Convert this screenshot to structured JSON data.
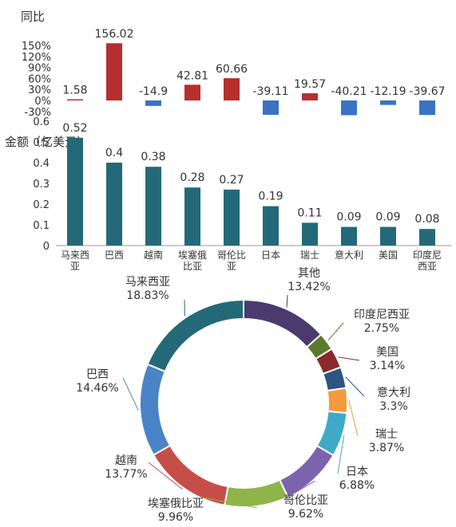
{
  "chart_data": [
    {
      "type": "bar",
      "title": "同比",
      "categories": [
        "马来西亚",
        "巴西",
        "越南",
        "埃塞俄比亚",
        "哥伦比亚",
        "日本",
        "瑞士",
        "意大利",
        "美国",
        "印度尼西亚"
      ],
      "values": [
        1.58,
        156.02,
        -14.9,
        42.81,
        60.66,
        -39.11,
        19.57,
        -40.21,
        -12.19,
        -39.67
      ],
      "value_labels": [
        "1.58",
        "156.02",
        "-14.9",
        "42.81",
        "60.66",
        "-39.11",
        "19.57",
        "-40.21",
        "-12.19",
        "-39.67"
      ],
      "yticks": [
        "150%",
        "120%",
        "90%",
        "60%",
        "30%",
        "0%",
        "-30%"
      ],
      "ytick_values": [
        150,
        120,
        90,
        60,
        30,
        0,
        -30
      ],
      "ylim": [
        -30,
        150
      ],
      "grid": false,
      "colors": {
        "positive": "#b5302f",
        "negative": "#3a73c2"
      }
    },
    {
      "type": "bar",
      "title": "金额（亿美元）",
      "categories": [
        "马来西亚",
        "巴西",
        "越南",
        "埃塞俄比亚",
        "哥伦比亚",
        "日本",
        "瑞士",
        "意大利",
        "美国",
        "印度尼西亚"
      ],
      "x_tick_labels": [
        [
          "马来西",
          "亚"
        ],
        [
          "巴西"
        ],
        [
          "越南"
        ],
        [
          "埃塞俄",
          "比亚"
        ],
        [
          "哥伦比",
          "亚"
        ],
        [
          "日本"
        ],
        [
          "瑞士"
        ],
        [
          "意大利"
        ],
        [
          "美国"
        ],
        [
          "印度尼",
          "西亚"
        ]
      ],
      "values": [
        0.52,
        0.4,
        0.38,
        0.28,
        0.27,
        0.19,
        0.11,
        0.09,
        0.09,
        0.08
      ],
      "value_labels": [
        "0.52",
        "0.4",
        "0.38",
        "0.28",
        "0.27",
        "0.19",
        "0.11",
        "0.09",
        "0.09",
        "0.08"
      ],
      "yticks": [
        "0.6",
        "0.5",
        "0.4",
        "0.3",
        "0.2",
        "0.1",
        "0"
      ],
      "ytick_values": [
        0.6,
        0.5,
        0.4,
        0.3,
        0.2,
        0.1,
        0
      ],
      "ylim": [
        0,
        0.6
      ],
      "grid": false,
      "colors": {
        "bar": "#236978"
      }
    },
    {
      "type": "pie",
      "donut": true,
      "slices": [
        {
          "label": "其他",
          "percent_label": "13.42%",
          "value": 13.42,
          "color": "#4a3a6e"
        },
        {
          "label": "印度尼西亚",
          "percent_label": "2.75%",
          "value": 2.75,
          "color": "#5b7a2a"
        },
        {
          "label": "美国",
          "percent_label": "3.14%",
          "value": 3.14,
          "color": "#8b2a2a"
        },
        {
          "label": "意大利",
          "percent_label": "3.3%",
          "value": 3.3,
          "color": "#2e5484"
        },
        {
          "label": "瑞士",
          "percent_label": "3.87%",
          "value": 3.87,
          "color": "#f39a3c"
        },
        {
          "label": "日本",
          "percent_label": "6.88%",
          "value": 6.88,
          "color": "#3faac7"
        },
        {
          "label": "哥伦比亚",
          "percent_label": "9.62%",
          "value": 9.62,
          "color": "#7b64ad"
        },
        {
          "label": "埃塞俄比亚",
          "percent_label": "9.96%",
          "value": 9.96,
          "color": "#8fb44a"
        },
        {
          "label": "越南",
          "percent_label": "13.77%",
          "value": 13.77,
          "color": "#c74e48"
        },
        {
          "label": "巴西",
          "percent_label": "14.46%",
          "value": 14.46,
          "color": "#4a84c6"
        },
        {
          "label": "马来西亚",
          "percent_label": "18.83%",
          "value": 18.83,
          "color": "#236978"
        }
      ]
    }
  ]
}
